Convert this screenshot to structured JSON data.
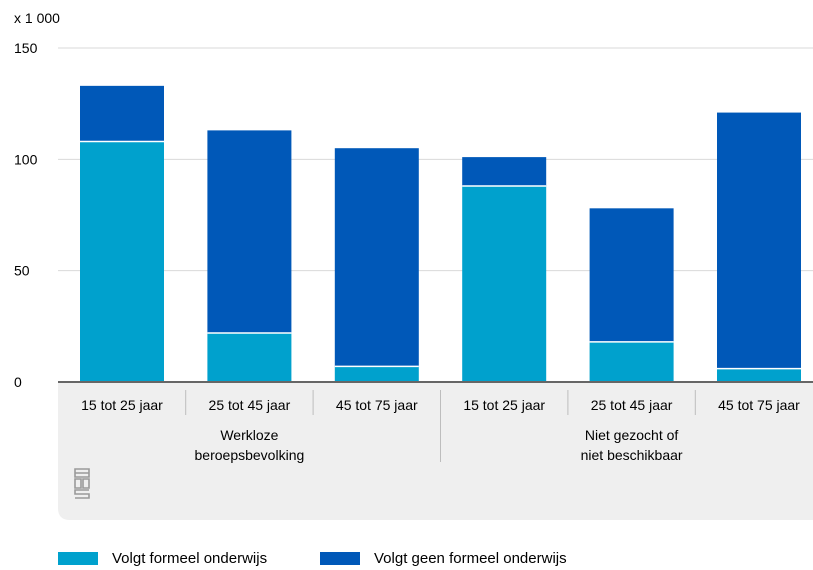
{
  "chart_data": {
    "type": "bar",
    "stacked": true,
    "unit_label": "x 1 000",
    "ylim": [
      0,
      150
    ],
    "yticks": [
      0,
      50,
      100,
      150
    ],
    "grid": true,
    "legend_position": "bottom-left",
    "categories": [
      "15 tot 25 jaar",
      "25 tot 45 jaar",
      "45 tot 75 jaar",
      "15 tot 25 jaar",
      "25 tot 45 jaar",
      "45 tot 75 jaar"
    ],
    "groups": [
      {
        "label_lines": [
          "Werkloze",
          "beroepsbevolking"
        ],
        "categories": [
          0,
          1,
          2
        ]
      },
      {
        "label_lines": [
          "Niet gezocht of",
          "niet beschikbaar"
        ],
        "categories": [
          3,
          4,
          5
        ]
      }
    ],
    "series": [
      {
        "name": "Volgt formeel onderwijs",
        "color": "#00a1cd",
        "values": [
          108,
          22,
          7,
          88,
          18,
          6
        ]
      },
      {
        "name": "Volgt geen formeel onderwijs",
        "color": "#0058b8",
        "values": [
          25,
          91,
          98,
          13,
          60,
          115
        ]
      }
    ]
  },
  "colors": {
    "axis_panel": "#efefef",
    "grid": "#d9d9d9",
    "axis_line": "#666666"
  },
  "logo_icon": "cbs-logo-icon"
}
